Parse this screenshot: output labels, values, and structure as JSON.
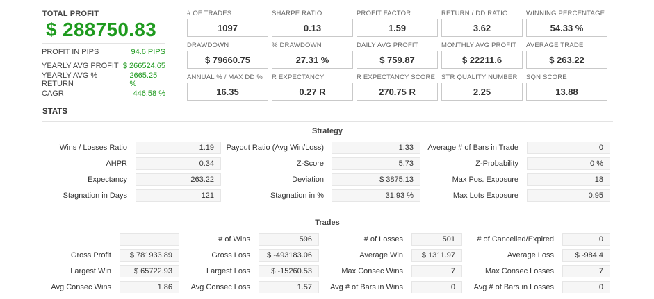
{
  "summary": {
    "total_label": "TOTAL PROFIT",
    "total_value": "$ 288750.83",
    "rows": [
      {
        "label": "PROFIT IN PIPS",
        "value": "94.6 PIPS"
      },
      {
        "label": "YEARLY AVG PROFIT",
        "value": "$ 266524.65"
      },
      {
        "label": "YEARLY AVG % RETURN",
        "value": "2665.25 %"
      },
      {
        "label": "CAGR",
        "value": "446.58 %"
      }
    ]
  },
  "metrics": [
    {
      "label": "# OF TRADES",
      "value": "1097"
    },
    {
      "label": "SHARPE RATIO",
      "value": "0.13"
    },
    {
      "label": "PROFIT FACTOR",
      "value": "1.59"
    },
    {
      "label": "RETURN / DD RATIO",
      "value": "3.62"
    },
    {
      "label": "WINNING PERCENTAGE",
      "value": "54.33 %"
    },
    {
      "label": "DRAWDOWN",
      "value": "$ 79660.75"
    },
    {
      "label": "% DRAWDOWN",
      "value": "27.31 %"
    },
    {
      "label": "DAILY AVG PROFIT",
      "value": "$ 759.87"
    },
    {
      "label": "MONTHLY AVG PROFIT",
      "value": "$ 22211.6"
    },
    {
      "label": "AVERAGE TRADE",
      "value": "$ 263.22"
    },
    {
      "label": "ANNUAL % / MAX DD %",
      "value": "16.35"
    },
    {
      "label": "R EXPECTANCY",
      "value": "0.27 R"
    },
    {
      "label": "R EXPECTANCY SCORE",
      "value": "270.75 R"
    },
    {
      "label": "STR QUALITY NUMBER",
      "value": "2.25"
    },
    {
      "label": "SQN SCORE",
      "value": "13.88"
    }
  ],
  "stats_title": "STATS",
  "strategy": {
    "title": "Strategy",
    "rows": [
      [
        {
          "label": "Wins / Losses Ratio",
          "value": "1.19"
        },
        {
          "label": "Payout Ratio (Avg Win/Loss)",
          "value": "1.33"
        },
        {
          "label": "Average # of Bars in Trade",
          "value": "0"
        }
      ],
      [
        {
          "label": "AHPR",
          "value": "0.34"
        },
        {
          "label": "Z-Score",
          "value": "5.73"
        },
        {
          "label": "Z-Probability",
          "value": "0 %"
        }
      ],
      [
        {
          "label": "Expectancy",
          "value": "263.22"
        },
        {
          "label": "Deviation",
          "value": "$ 3875.13"
        },
        {
          "label": "Max Pos. Exposure",
          "value": "18"
        }
      ],
      [
        {
          "label": "Stagnation in Days",
          "value": "121"
        },
        {
          "label": "Stagnation in %",
          "value": "31.93 %"
        },
        {
          "label": "Max Lots Exposure",
          "value": "0.95"
        }
      ]
    ]
  },
  "trades": {
    "title": "Trades",
    "rows": [
      [
        {
          "label": "",
          "value": ""
        },
        {
          "label": "# of Wins",
          "value": "596"
        },
        {
          "label": "# of Losses",
          "value": "501"
        },
        {
          "label": "# of Cancelled/Expired",
          "value": "0"
        }
      ],
      [
        {
          "label": "Gross Profit",
          "value": "$ 781933.89"
        },
        {
          "label": "Gross Loss",
          "value": "$ -493183.06"
        },
        {
          "label": "Average Win",
          "value": "$ 1311.97"
        },
        {
          "label": "Average Loss",
          "value": "$ -984.4"
        }
      ],
      [
        {
          "label": "Largest Win",
          "value": "$ 65722.93"
        },
        {
          "label": "Largest Loss",
          "value": "$ -15260.53"
        },
        {
          "label": "Max Consec Wins",
          "value": "7"
        },
        {
          "label": "Max Consec Losses",
          "value": "7"
        }
      ],
      [
        {
          "label": "Avg Consec Wins",
          "value": "1.86"
        },
        {
          "label": "Avg Consec Loss",
          "value": "1.57"
        },
        {
          "label": "Avg # of Bars in Wins",
          "value": "0"
        },
        {
          "label": "Avg # of Bars in Losses",
          "value": "0"
        }
      ]
    ]
  }
}
